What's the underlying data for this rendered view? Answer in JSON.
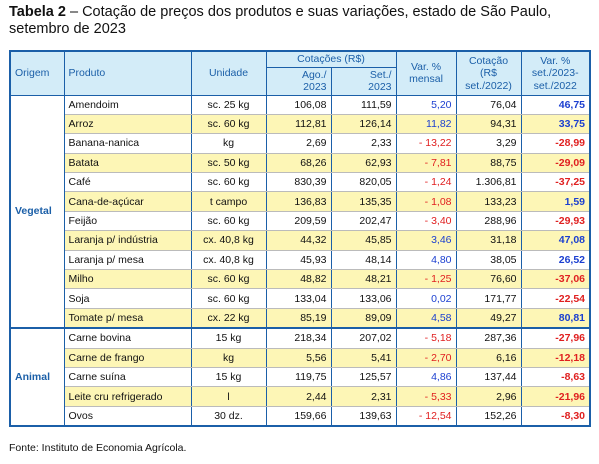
{
  "title": {
    "label": "Tabela 2",
    "text": "– Cotação de preços dos produtos e suas variações, estado de São Paulo, setembro de 2023"
  },
  "table": {
    "headers": {
      "origin": [
        "Origem"
      ],
      "product": [
        "Produto"
      ],
      "unit": [
        "Unidade"
      ],
      "prices": [
        "Cotações (R$)"
      ],
      "aug": [
        "Ago./",
        "2023"
      ],
      "sep": [
        "Set./",
        "2023"
      ],
      "monthly": [
        "Var. %",
        "mensal"
      ],
      "price_2022": [
        "Cotação",
        "(R$",
        "set./2022)"
      ],
      "yearly": [
        "Var. %",
        "set./2023-",
        "set./2022"
      ]
    },
    "groups": [
      {
        "origin": "Vegetal",
        "rows": [
          [
            "Amendoim",
            "sc. 25 kg",
            "106,08",
            "111,59",
            "5,20",
            "76,04",
            "46,75"
          ],
          [
            "Arroz",
            "sc. 60 kg",
            "112,81",
            "126,14",
            "11,82",
            "94,31",
            "33,75"
          ],
          [
            "Banana-nanica",
            "kg",
            "2,69",
            "2,33",
            "- 13,22",
            "3,29",
            "-28,99"
          ],
          [
            "Batata",
            "sc. 50 kg",
            "68,26",
            "62,93",
            "- 7,81",
            "88,75",
            "-29,09"
          ],
          [
            "Café",
            "sc. 60 kg",
            "830,39",
            "820,05",
            "- 1,24",
            "1.306,81",
            "-37,25"
          ],
          [
            "Cana-de-açúcar",
            "t campo",
            "136,83",
            "135,35",
            "- 1,08",
            "133,23",
            "1,59"
          ],
          [
            "Feijão",
            "sc. 60 kg",
            "209,59",
            "202,47",
            "- 3,40",
            "288,96",
            "-29,93"
          ],
          [
            "Laranja p/ indústria",
            "cx. 40,8 kg",
            "44,32",
            "45,85",
            "3,46",
            "31,18",
            "47,08"
          ],
          [
            "Laranja p/ mesa",
            "cx. 40,8 kg",
            "45,93",
            "48,14",
            "4,80",
            "38,05",
            "26,52"
          ],
          [
            "Milho",
            "sc. 60 kg",
            "48,82",
            "48,21",
            "- 1,25",
            "76,60",
            "-37,06"
          ],
          [
            "Soja",
            "sc. 60 kg",
            "133,04",
            "133,06",
            "0,02",
            "171,77",
            "-22,54"
          ],
          [
            "Tomate p/ mesa",
            "cx. 22 kg",
            "85,19",
            "89,09",
            "4,58",
            "49,27",
            "80,81"
          ]
        ]
      },
      {
        "origin": "Animal",
        "rows": [
          [
            "Carne bovina",
            "15 kg",
            "218,34",
            "207,02",
            "- 5,18",
            "287,36",
            "-27,96"
          ],
          [
            "Carne de frango",
            "kg",
            "5,56",
            "5,41",
            "- 2,70",
            "6,16",
            "-12,18"
          ],
          [
            "Carne suína",
            "15 kg",
            "119,75",
            "125,57",
            "4,86",
            "137,44",
            "-8,63"
          ],
          [
            "Leite cru refrigerado",
            "l",
            "2,44",
            "2,31",
            "- 5,33",
            "2,96",
            "-21,96"
          ],
          [
            "Ovos",
            "30 dz.",
            "159,66",
            "139,63",
            "- 12,54",
            "152,26",
            "-8,30"
          ]
        ]
      }
    ]
  },
  "source": "Fonte: Instituto de Economia Agrícola."
}
